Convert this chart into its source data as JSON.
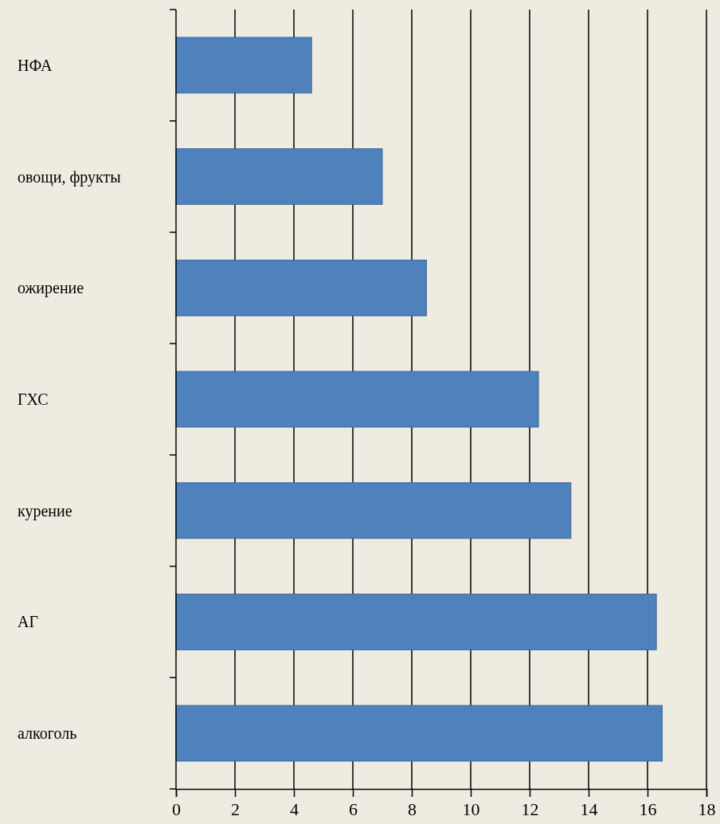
{
  "chart_data": {
    "type": "bar",
    "orientation": "horizontal",
    "categories": [
      "НФА",
      "овощи, фрукты",
      "ожирение",
      "ГХС",
      "курение",
      "АГ",
      "алкоголь"
    ],
    "values": [
      4.6,
      7.0,
      8.5,
      12.3,
      13.4,
      16.3,
      16.5
    ],
    "color": "#4f81bd",
    "xlim": [
      0,
      18
    ],
    "xticks": [
      0,
      2,
      4,
      6,
      8,
      10,
      12,
      14,
      16,
      18
    ],
    "grid": "x"
  }
}
